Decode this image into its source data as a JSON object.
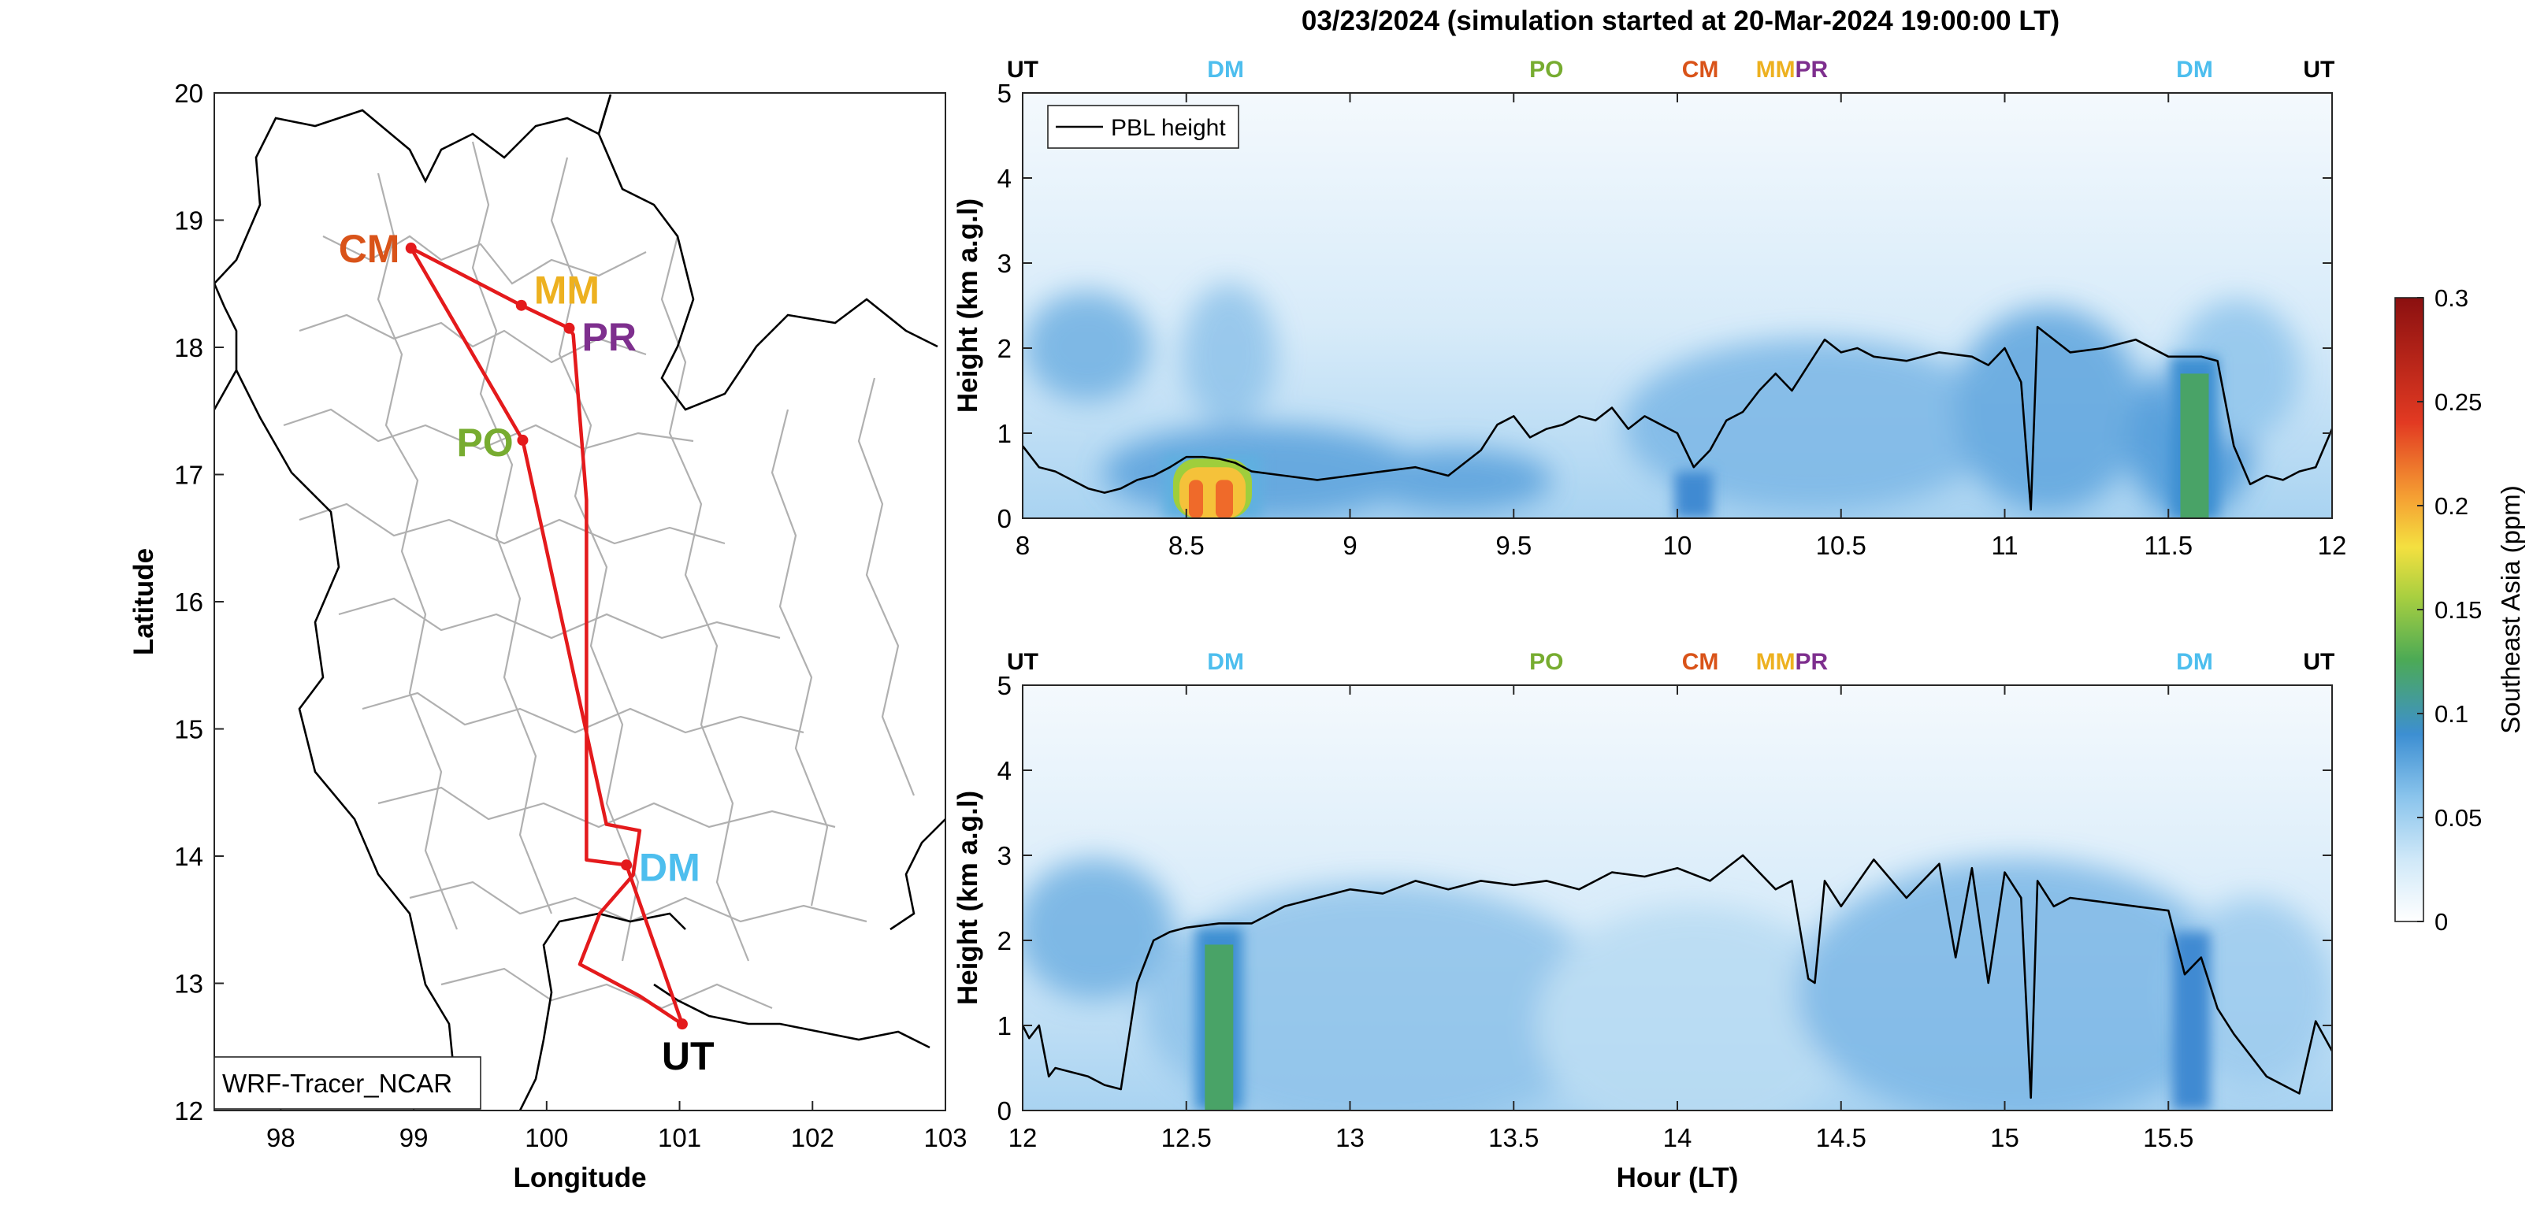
{
  "figure": {
    "title": "03/23/2024 (simulation started at 20-Mar-2024 19:00:00 LT)"
  },
  "colors": {
    "CM": "#d95319",
    "MM": "#edb120",
    "PR": "#7e2f8e",
    "PO": "#77ac30",
    "DM": "#4dbeee",
    "UT": "#000000",
    "track": "#e41a1c",
    "borders": "#b0b0b0",
    "coast": "#000000",
    "pbl": "#000000"
  },
  "chart_data": [
    {
      "type": "map",
      "xlabel": "Longitude",
      "ylabel": "Latitude",
      "xlim": [
        97.5,
        103
      ],
      "ylim": [
        12,
        20
      ],
      "xticks": [
        "98",
        "99",
        "100",
        "101",
        "102",
        "103"
      ],
      "yticks": [
        "12",
        "13",
        "14",
        "15",
        "16",
        "17",
        "18",
        "19",
        "20"
      ],
      "legend_box": "WRF-Tracer_NCAR",
      "sites": [
        {
          "code": "CM",
          "lon": 98.98,
          "lat": 18.78
        },
        {
          "code": "MM",
          "lon": 99.81,
          "lat": 18.33
        },
        {
          "code": "PR",
          "lon": 100.17,
          "lat": 18.15
        },
        {
          "code": "PO",
          "lon": 99.82,
          "lat": 17.27
        },
        {
          "code": "DM",
          "lon": 100.6,
          "lat": 13.93
        },
        {
          "code": "UT",
          "lon": 101.02,
          "lat": 12.68
        }
      ],
      "track": [
        [
          101.02,
          12.68
        ],
        [
          100.6,
          13.93
        ],
        [
          100.3,
          13.97
        ],
        [
          100.3,
          16.8
        ],
        [
          100.2,
          18.1
        ],
        [
          100.17,
          18.15
        ],
        [
          99.81,
          18.33
        ],
        [
          98.98,
          18.78
        ],
        [
          99.82,
          17.27
        ],
        [
          100.45,
          14.25
        ],
        [
          100.7,
          14.2
        ],
        [
          100.65,
          13.85
        ],
        [
          100.4,
          13.55
        ],
        [
          100.25,
          13.15
        ],
        [
          100.7,
          12.9
        ],
        [
          101.02,
          12.68
        ]
      ]
    },
    {
      "type": "heatmap",
      "xlabel": "",
      "ylabel": "Height (km a.g.l)",
      "xlim": [
        8,
        12
      ],
      "ylim": [
        0,
        5
      ],
      "xticks": [
        "8",
        "8.5",
        "9",
        "9.5",
        "10",
        "10.5",
        "11",
        "11.5",
        "12"
      ],
      "yticks": [
        "0",
        "1",
        "2",
        "3",
        "4",
        "5"
      ],
      "legend": [
        "PBL height"
      ],
      "top_labels": [
        {
          "code": "UT",
          "x": 8.0
        },
        {
          "code": "DM",
          "x": 8.62
        },
        {
          "code": "PO",
          "x": 9.6
        },
        {
          "code": "CM",
          "x": 10.07
        },
        {
          "code": "MM",
          "x": 10.3
        },
        {
          "code": "PR",
          "x": 10.41
        },
        {
          "code": "DM",
          "x": 11.58
        },
        {
          "code": "UT",
          "x": 11.96
        }
      ],
      "pbl_height": {
        "x": [
          8.0,
          8.05,
          8.1,
          8.15,
          8.2,
          8.25,
          8.3,
          8.35,
          8.4,
          8.45,
          8.5,
          8.55,
          8.6,
          8.65,
          8.7,
          8.8,
          8.9,
          9.0,
          9.1,
          9.2,
          9.3,
          9.4,
          9.45,
          9.5,
          9.55,
          9.6,
          9.65,
          9.7,
          9.75,
          9.8,
          9.85,
          9.9,
          9.95,
          10.0,
          10.05,
          10.1,
          10.15,
          10.2,
          10.25,
          10.3,
          10.35,
          10.4,
          10.45,
          10.5,
          10.55,
          10.6,
          10.7,
          10.8,
          10.9,
          10.95,
          11.0,
          11.05,
          11.08,
          11.1,
          11.15,
          11.2,
          11.3,
          11.4,
          11.5,
          11.6,
          11.65,
          11.7,
          11.75,
          11.8,
          11.85,
          11.9,
          11.95,
          12.0
        ],
        "y": [
          0.85,
          0.6,
          0.55,
          0.45,
          0.35,
          0.3,
          0.35,
          0.45,
          0.5,
          0.6,
          0.72,
          0.72,
          0.7,
          0.65,
          0.55,
          0.5,
          0.45,
          0.5,
          0.55,
          0.6,
          0.5,
          0.8,
          1.1,
          1.2,
          0.95,
          1.05,
          1.1,
          1.2,
          1.15,
          1.3,
          1.05,
          1.2,
          1.1,
          1.0,
          0.6,
          0.8,
          1.15,
          1.25,
          1.5,
          1.7,
          1.5,
          1.8,
          2.1,
          1.95,
          2.0,
          1.9,
          1.85,
          1.95,
          1.9,
          1.8,
          2.0,
          1.6,
          0.1,
          2.25,
          2.1,
          1.95,
          2.0,
          2.1,
          1.9,
          1.9,
          1.85,
          0.85,
          0.4,
          0.5,
          0.45,
          0.55,
          0.6,
          1.05
        ]
      },
      "plumes": [
        {
          "x": 8.58,
          "y": 0.35,
          "value": 0.22
        },
        {
          "x": 11.58,
          "y": 1.0,
          "value": 0.12
        },
        {
          "x": 10.05,
          "y": 0.3,
          "value": 0.08
        }
      ]
    },
    {
      "type": "heatmap",
      "xlabel": "Hour (LT)",
      "ylabel": "Height (km a.g.l)",
      "xlim": [
        12,
        16
      ],
      "ylim": [
        0,
        5
      ],
      "xticks": [
        "12",
        "12.5",
        "13",
        "13.5",
        "14",
        "14.5",
        "15",
        "15.5"
      ],
      "yticks": [
        "0",
        "1",
        "2",
        "3",
        "4",
        "5"
      ],
      "top_labels": [
        {
          "code": "UT",
          "x": 12.0
        },
        {
          "code": "DM",
          "x": 12.62
        },
        {
          "code": "PO",
          "x": 13.6
        },
        {
          "code": "CM",
          "x": 14.07
        },
        {
          "code": "MM",
          "x": 14.3
        },
        {
          "code": "PR",
          "x": 14.41
        },
        {
          "code": "DM",
          "x": 15.58
        },
        {
          "code": "UT",
          "x": 15.96
        }
      ],
      "pbl_height": {
        "x": [
          12.0,
          12.02,
          12.05,
          12.08,
          12.1,
          12.2,
          12.25,
          12.3,
          12.35,
          12.4,
          12.45,
          12.5,
          12.6,
          12.7,
          12.8,
          12.9,
          13.0,
          13.1,
          13.2,
          13.3,
          13.4,
          13.5,
          13.6,
          13.7,
          13.8,
          13.9,
          14.0,
          14.1,
          14.2,
          14.3,
          14.35,
          14.4,
          14.42,
          14.45,
          14.5,
          14.6,
          14.7,
          14.8,
          14.85,
          14.9,
          14.95,
          15.0,
          15.05,
          15.08,
          15.1,
          15.15,
          15.2,
          15.3,
          15.4,
          15.5,
          15.55,
          15.6,
          15.65,
          15.7,
          15.8,
          15.9,
          15.95,
          16.0
        ],
        "y": [
          1.0,
          0.85,
          1.0,
          0.4,
          0.5,
          0.4,
          0.3,
          0.25,
          1.5,
          2.0,
          2.1,
          2.15,
          2.2,
          2.2,
          2.4,
          2.5,
          2.6,
          2.55,
          2.7,
          2.6,
          2.7,
          2.65,
          2.7,
          2.6,
          2.8,
          2.75,
          2.85,
          2.7,
          3.0,
          2.6,
          2.7,
          1.55,
          1.5,
          2.7,
          2.4,
          2.95,
          2.5,
          2.9,
          1.8,
          2.85,
          1.5,
          2.8,
          2.5,
          0.15,
          2.7,
          2.4,
          2.5,
          2.45,
          2.4,
          2.35,
          1.6,
          1.8,
          1.2,
          0.9,
          0.4,
          0.2,
          1.05,
          0.7
        ]
      },
      "plumes": [
        {
          "x": 12.6,
          "y": 1.0,
          "value": 0.13
        },
        {
          "x": 15.57,
          "y": 1.0,
          "value": 0.09
        }
      ]
    }
  ],
  "colorbar": {
    "label": "Southeast Asia (ppm)",
    "range": [
      0,
      0.3
    ],
    "ticks": [
      "0",
      "0.05",
      "0.1",
      "0.15",
      "0.2",
      "0.25",
      "0.3"
    ]
  }
}
